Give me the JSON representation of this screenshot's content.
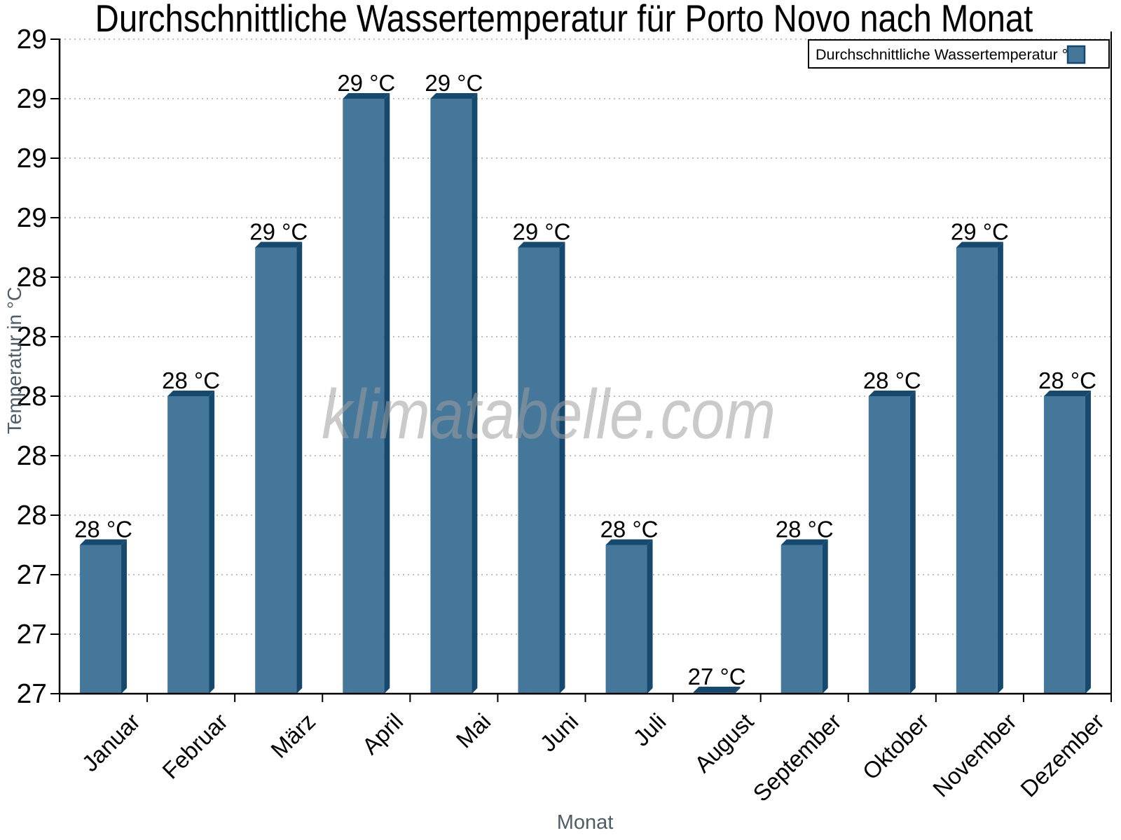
{
  "title": "Durchschnittliche Wassertemperatur für Porto Novo nach Monat",
  "watermark": "klimatabelle.com",
  "legend": {
    "label": "Durchschnittliche Wassertemperatur °C",
    "position": "top-right"
  },
  "axes": {
    "xlabel": "Monat",
    "ylabel": "Temperatur in °C"
  },
  "chart_data": {
    "type": "bar",
    "title": "Durchschnittliche Wassertemperatur für Porto Novo nach Monat",
    "xlabel": "Monat",
    "ylabel": "Temperatur in °C",
    "categories": [
      "Januar",
      "Februar",
      "März",
      "April",
      "Mai",
      "Juni",
      "Juli",
      "August",
      "September",
      "Oktober",
      "November",
      "Dezember"
    ],
    "values": [
      27.5,
      28.0,
      28.5,
      29.0,
      29.0,
      28.5,
      27.5,
      27.0,
      27.5,
      28.0,
      28.5,
      28.0
    ],
    "bar_labels": [
      "28 °C",
      "28 °C",
      "29 °C",
      "29 °C",
      "29 °C",
      "29 °C",
      "28 °C",
      "27 °C",
      "28 °C",
      "28 °C",
      "29 °C",
      "28 °C"
    ],
    "ylim": [
      27.0,
      29.2
    ],
    "ytick_step": 0.2,
    "ytick_labels_bottom_to_top": [
      "27",
      "27",
      "27",
      "28",
      "28",
      "28",
      "28",
      "28",
      "29",
      "29",
      "29",
      "29"
    ],
    "grid": "horizontal-dotted",
    "legend_position": "top-right",
    "bar_style": "3d-bevel",
    "colors": {
      "bar_face": "#45779B",
      "bar_edge": "#17496E",
      "grid": "#AAAAAA",
      "axis": "#000000",
      "tick_label": "#000000",
      "axis_title": "#4F5D68",
      "watermark": "#9E9E9E"
    }
  }
}
